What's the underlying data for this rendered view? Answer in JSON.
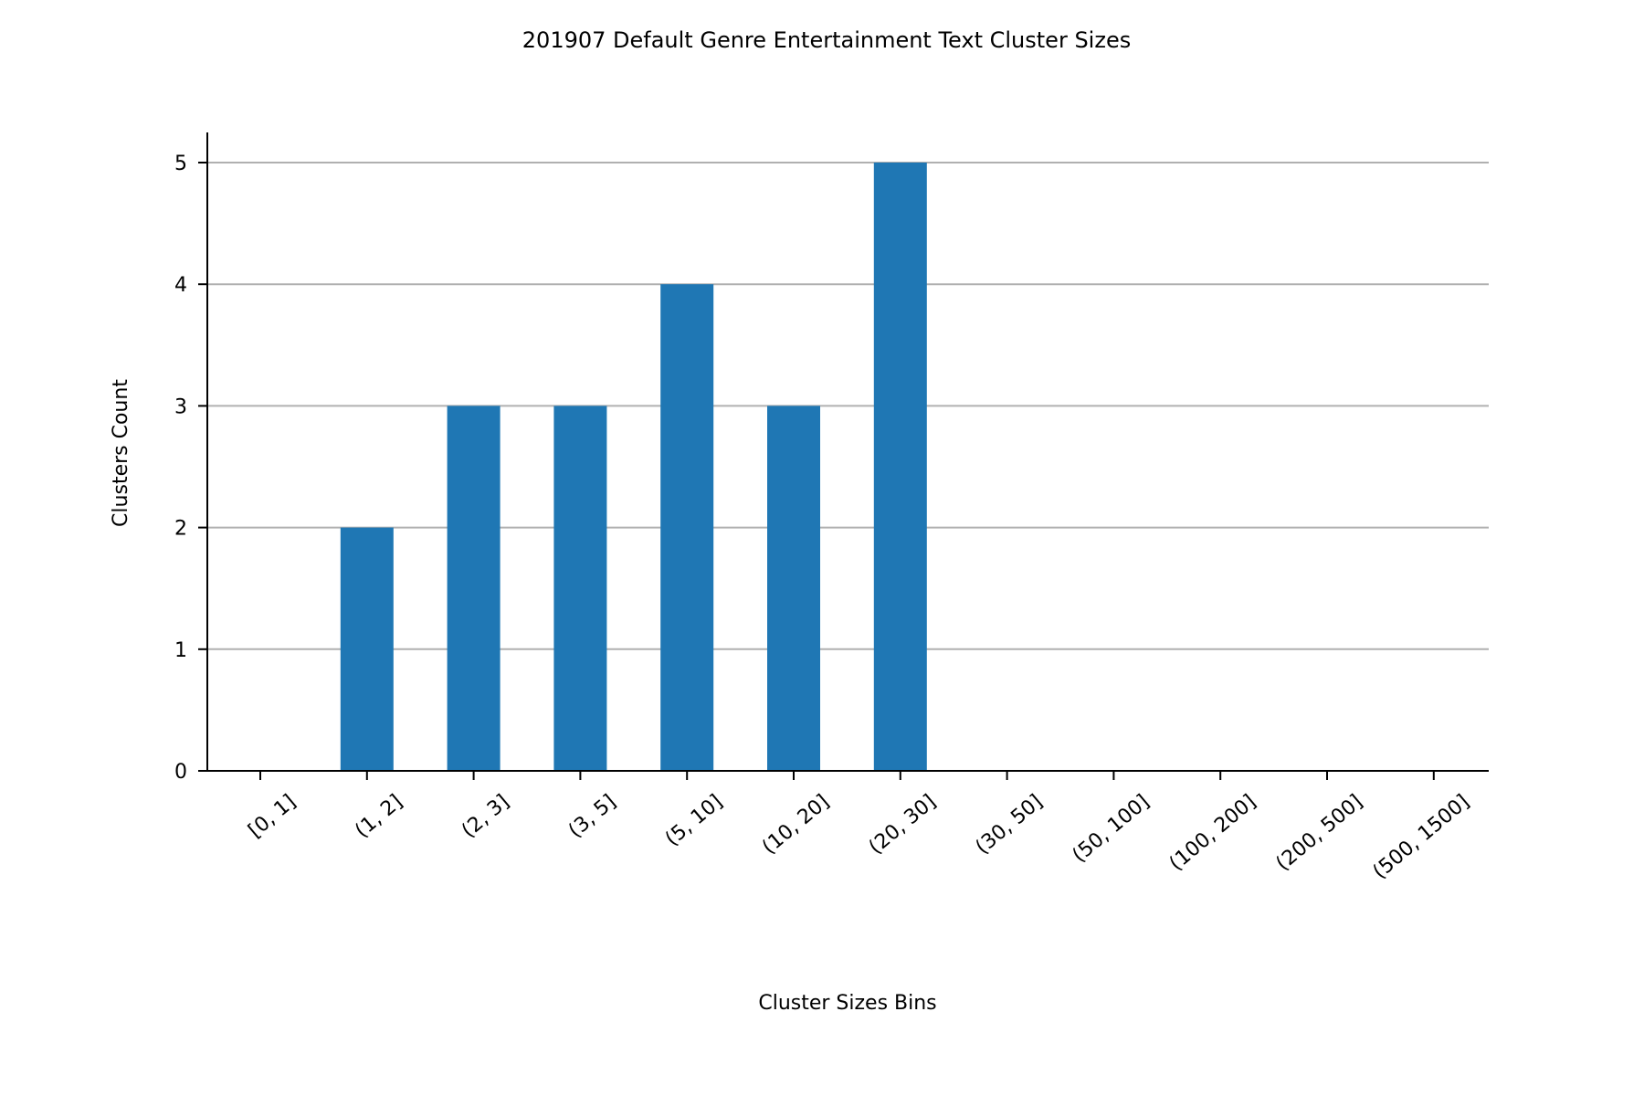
{
  "chart_data": {
    "type": "bar",
    "title": "201907 Default Genre Entertainment Text Cluster Sizes",
    "xlabel": "Cluster Sizes Bins",
    "ylabel": "Clusters Count",
    "categories": [
      "[0, 1]",
      "(1, 2]",
      "(2, 3]",
      "(3, 5]",
      "(5, 10]",
      "(10, 20]",
      "(20, 30]",
      "(30, 50]",
      "(50, 100]",
      "(100, 200]",
      "(200, 500]",
      "(500, 1500]"
    ],
    "values": [
      0,
      2,
      3,
      3,
      4,
      3,
      5,
      0,
      0,
      0,
      0,
      0
    ],
    "yticks": [
      "0",
      "1",
      "2",
      "3",
      "4",
      "5"
    ],
    "ylim": [
      0,
      5.25
    ],
    "grid": "horizontal",
    "legend": "none",
    "bar_color": "#1f77b4",
    "grid_color": "#b0b0b0",
    "axis_color": "#000000"
  }
}
